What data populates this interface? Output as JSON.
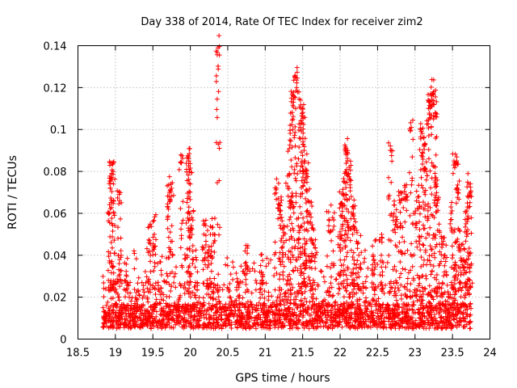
{
  "chart_data": {
    "type": "scatter",
    "title": "Day 338 of 2014, Rate Of TEC Index for receiver zim2",
    "xlabel": "GPS time / hours",
    "ylabel": "ROTI / TECUs",
    "xlim": [
      18.5,
      24
    ],
    "ylim": [
      0,
      0.14
    ],
    "xticks": [
      "18.5",
      "19",
      "19.5",
      "20",
      "20.5",
      "21",
      "21.5",
      "22",
      "22.5",
      "23",
      "23.5",
      "24"
    ],
    "yticks": [
      "0",
      "0.02",
      "0.04",
      "0.06",
      "0.08",
      "0.1",
      "0.12",
      "0.14"
    ],
    "grid": true,
    "marker": "+",
    "marker_color": "#ff0000",
    "series": [
      {
        "name": "zim2",
        "x_range": [
          18.83,
          23.75
        ],
        "baseline_roti": [
          0.005,
          0.035
        ],
        "notable_points": [
          {
            "x": 18.93,
            "y": 0.072
          },
          {
            "x": 18.95,
            "y": 0.079
          },
          {
            "x": 18.97,
            "y": 0.08
          },
          {
            "x": 18.92,
            "y": 0.06
          },
          {
            "x": 18.98,
            "y": 0.06
          },
          {
            "x": 19.05,
            "y": 0.069
          },
          {
            "x": 19.05,
            "y": 0.036
          },
          {
            "x": 19.15,
            "y": 0.03
          },
          {
            "x": 19.45,
            "y": 0.046
          },
          {
            "x": 19.52,
            "y": 0.05
          },
          {
            "x": 19.72,
            "y": 0.07
          },
          {
            "x": 19.75,
            "y": 0.072
          },
          {
            "x": 19.7,
            "y": 0.063
          },
          {
            "x": 19.88,
            "y": 0.084
          },
          {
            "x": 19.95,
            "y": 0.081
          },
          {
            "x": 19.98,
            "y": 0.085
          },
          {
            "x": 20.0,
            "y": 0.074
          },
          {
            "x": 19.98,
            "y": 0.063
          },
          {
            "x": 20.02,
            "y": 0.058
          },
          {
            "x": 20.18,
            "y": 0.05
          },
          {
            "x": 20.25,
            "y": 0.044
          },
          {
            "x": 20.3,
            "y": 0.05
          },
          {
            "x": 20.37,
            "y": 0.139
          },
          {
            "x": 20.75,
            "y": 0.035
          },
          {
            "x": 20.95,
            "y": 0.032
          },
          {
            "x": 21.15,
            "y": 0.072
          },
          {
            "x": 21.2,
            "y": 0.065
          },
          {
            "x": 21.22,
            "y": 0.058
          },
          {
            "x": 21.25,
            "y": 0.046
          },
          {
            "x": 21.3,
            "y": 0.073
          },
          {
            "x": 21.32,
            "y": 0.063
          },
          {
            "x": 21.33,
            "y": 0.095
          },
          {
            "x": 21.35,
            "y": 0.115
          },
          {
            "x": 21.37,
            "y": 0.105
          },
          {
            "x": 21.4,
            "y": 0.125
          },
          {
            "x": 21.42,
            "y": 0.12
          },
          {
            "x": 21.45,
            "y": 0.048
          },
          {
            "x": 21.47,
            "y": 0.101
          },
          {
            "x": 21.48,
            "y": 0.11
          },
          {
            "x": 21.5,
            "y": 0.106
          },
          {
            "x": 21.52,
            "y": 0.09
          },
          {
            "x": 21.53,
            "y": 0.085
          },
          {
            "x": 21.55,
            "y": 0.079
          },
          {
            "x": 21.57,
            "y": 0.066
          },
          {
            "x": 21.6,
            "y": 0.06
          },
          {
            "x": 21.62,
            "y": 0.053
          },
          {
            "x": 21.65,
            "y": 0.045
          },
          {
            "x": 21.85,
            "y": 0.057
          },
          {
            "x": 21.9,
            "y": 0.058
          },
          {
            "x": 22.0,
            "y": 0.05
          },
          {
            "x": 22.02,
            "y": 0.065
          },
          {
            "x": 22.05,
            "y": 0.069
          },
          {
            "x": 22.07,
            "y": 0.08
          },
          {
            "x": 22.08,
            "y": 0.088
          },
          {
            "x": 22.1,
            "y": 0.09
          },
          {
            "x": 22.12,
            "y": 0.082
          },
          {
            "x": 22.15,
            "y": 0.068
          },
          {
            "x": 22.17,
            "y": 0.063
          },
          {
            "x": 22.2,
            "y": 0.053
          },
          {
            "x": 22.25,
            "y": 0.04
          },
          {
            "x": 22.45,
            "y": 0.038
          },
          {
            "x": 22.55,
            "y": 0.04
          },
          {
            "x": 22.67,
            "y": 0.09
          },
          {
            "x": 22.72,
            "y": 0.06
          },
          {
            "x": 22.75,
            "y": 0.056
          },
          {
            "x": 22.8,
            "y": 0.065
          },
          {
            "x": 22.85,
            "y": 0.067
          },
          {
            "x": 22.88,
            "y": 0.068
          },
          {
            "x": 22.95,
            "y": 0.101
          },
          {
            "x": 23.0,
            "y": 0.06
          },
          {
            "x": 23.05,
            "y": 0.068
          },
          {
            "x": 23.08,
            "y": 0.1
          },
          {
            "x": 23.1,
            "y": 0.087
          },
          {
            "x": 23.12,
            "y": 0.092
          },
          {
            "x": 23.15,
            "y": 0.08
          },
          {
            "x": 23.18,
            "y": 0.11
          },
          {
            "x": 23.2,
            "y": 0.113
          },
          {
            "x": 23.22,
            "y": 0.116
          },
          {
            "x": 23.25,
            "y": 0.118
          },
          {
            "x": 23.27,
            "y": 0.108
          },
          {
            "x": 23.28,
            "y": 0.077
          },
          {
            "x": 23.3,
            "y": 0.066
          },
          {
            "x": 23.35,
            "y": 0.049
          },
          {
            "x": 23.4,
            "y": 0.04
          },
          {
            "x": 23.48,
            "y": 0.06
          },
          {
            "x": 23.52,
            "y": 0.085
          },
          {
            "x": 23.55,
            "y": 0.084
          },
          {
            "x": 23.57,
            "y": 0.07
          },
          {
            "x": 23.6,
            "y": 0.043
          },
          {
            "x": 23.65,
            "y": 0.038
          },
          {
            "x": 23.68,
            "y": 0.055
          },
          {
            "x": 23.7,
            "y": 0.063
          },
          {
            "x": 23.72,
            "y": 0.074
          },
          {
            "x": 23.74,
            "y": 0.07
          }
        ]
      }
    ]
  }
}
